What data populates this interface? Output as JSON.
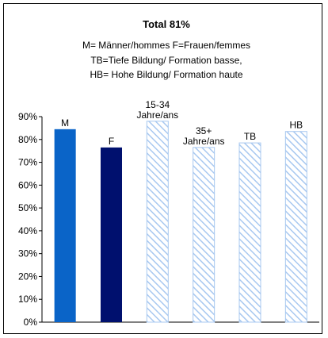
{
  "chart_data": {
    "type": "bar",
    "title": "Total 81%",
    "subtitle": [
      "M= Männer/hommes F=Frauen/femmes",
      "TB=Tiefe Bildung/ Formation basse,",
      "HB= Hohe Bildung/ Formation haute"
    ],
    "categories": [
      "M",
      "F",
      "15-34 Jahre/ans",
      "35+ Jahre/ans",
      "TB",
      "HB"
    ],
    "label_lines": [
      [
        "M"
      ],
      [
        "F"
      ],
      [
        "15-34",
        "Jahre/ans"
      ],
      [
        "35+",
        "Jahre/ans"
      ],
      [
        "TB"
      ],
      [
        "HB"
      ]
    ],
    "values": [
      84.5,
      76.5,
      88,
      76.5,
      78.5,
      83.5
    ],
    "bar_styles": [
      "solid",
      "solid",
      "hatch",
      "hatch",
      "hatch",
      "hatch"
    ],
    "bar_colors": [
      "#0a64c8",
      "#00106e",
      "#a8c8f0",
      "#a8c8f0",
      "#a8c8f0",
      "#a8c8f0"
    ],
    "ylim": [
      0,
      90
    ],
    "yticks": [
      "0%",
      "10%",
      "20%",
      "30%",
      "40%",
      "50%",
      "60%",
      "70%",
      "80%",
      "90%"
    ],
    "xlabel": "",
    "ylabel": ""
  }
}
